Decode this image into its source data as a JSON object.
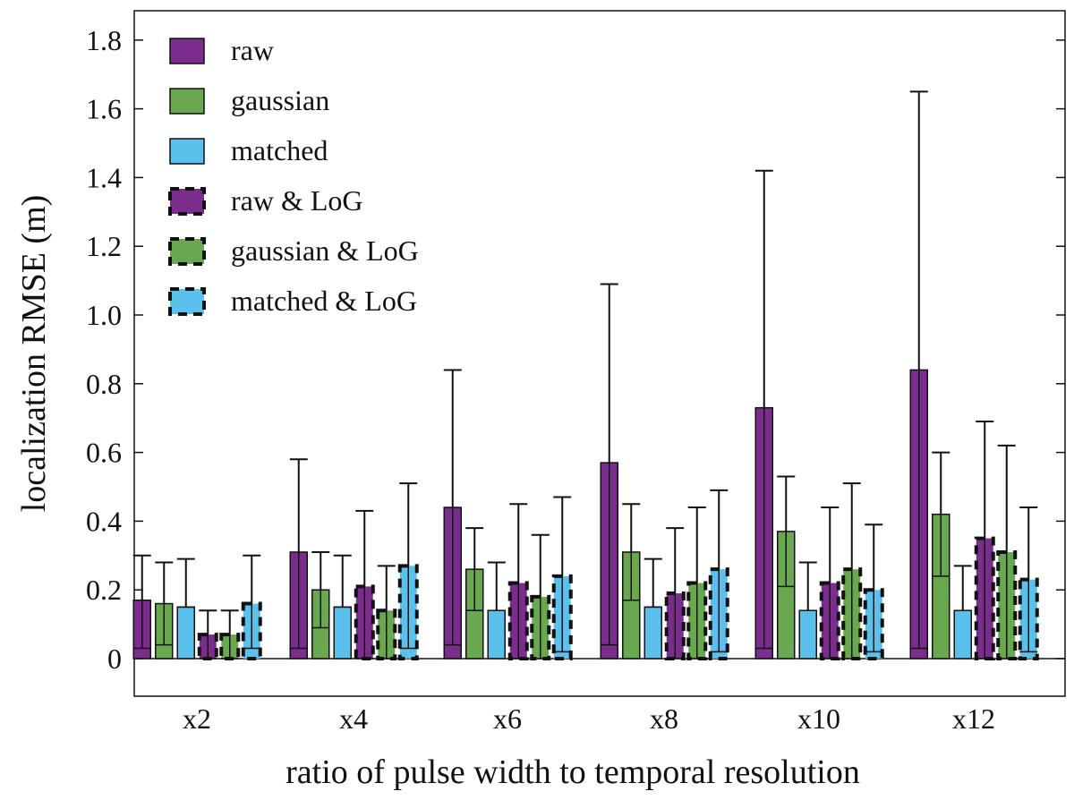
{
  "chart_data": {
    "type": "bar",
    "xlabel": "ratio of pulse width to temporal resolution",
    "ylabel": "localization RMSE (m)",
    "ylim": [
      0,
      1.87
    ],
    "yticks": [
      "0",
      "0.2",
      "0.4",
      "0.6",
      "0.8",
      "1.0",
      "1.2",
      "1.4",
      "1.6",
      "1.8"
    ],
    "grid": false,
    "legend_position": "top-left",
    "categories": [
      "x2",
      "x4",
      "x6",
      "x8",
      "x10",
      "x12"
    ],
    "series": [
      {
        "name": "raw",
        "color": "#7b2d8e",
        "dashed": false,
        "values": [
          0.17,
          0.31,
          0.44,
          0.57,
          0.73,
          0.84
        ],
        "lower": [
          0.03,
          0.03,
          0.04,
          0.04,
          0.03,
          0.03
        ],
        "upper": [
          0.3,
          0.58,
          0.84,
          1.09,
          1.42,
          1.65
        ]
      },
      {
        "name": "gaussian",
        "color": "#6aa84f",
        "dashed": false,
        "values": [
          0.16,
          0.2,
          0.26,
          0.31,
          0.37,
          0.42
        ],
        "lower": [
          0.04,
          0.09,
          0.14,
          0.17,
          0.21,
          0.24
        ],
        "upper": [
          0.28,
          0.31,
          0.38,
          0.45,
          0.53,
          0.6
        ]
      },
      {
        "name": "matched",
        "color": "#5bc0eb",
        "dashed": false,
        "values": [
          0.15,
          0.15,
          0.14,
          0.15,
          0.14,
          0.14
        ],
        "lower": [
          0.15,
          0.15,
          0.14,
          0.15,
          0.14,
          0.14
        ],
        "upper": [
          0.29,
          0.3,
          0.28,
          0.29,
          0.28,
          0.27
        ]
      },
      {
        "name": "raw & LoG",
        "color": "#7b2d8e",
        "dashed": true,
        "values": [
          0.07,
          0.21,
          0.22,
          0.19,
          0.22,
          0.35
        ],
        "lower": [
          0.0,
          0.0,
          0.0,
          0.0,
          0.0,
          0.0
        ],
        "upper": [
          0.14,
          0.43,
          0.45,
          0.38,
          0.44,
          0.69
        ]
      },
      {
        "name": "gaussian & LoG",
        "color": "#6aa84f",
        "dashed": true,
        "values": [
          0.07,
          0.14,
          0.18,
          0.22,
          0.26,
          0.31
        ],
        "lower": [
          0.0,
          0.0,
          0.0,
          0.0,
          0.0,
          0.0
        ],
        "upper": [
          0.14,
          0.27,
          0.36,
          0.44,
          0.51,
          0.62
        ]
      },
      {
        "name": "matched & LoG",
        "color": "#5bc0eb",
        "dashed": true,
        "values": [
          0.16,
          0.27,
          0.24,
          0.26,
          0.2,
          0.23
        ],
        "lower": [
          0.03,
          0.03,
          0.02,
          0.02,
          0.02,
          0.02
        ],
        "upper": [
          0.3,
          0.51,
          0.47,
          0.49,
          0.39,
          0.44
        ]
      }
    ]
  }
}
